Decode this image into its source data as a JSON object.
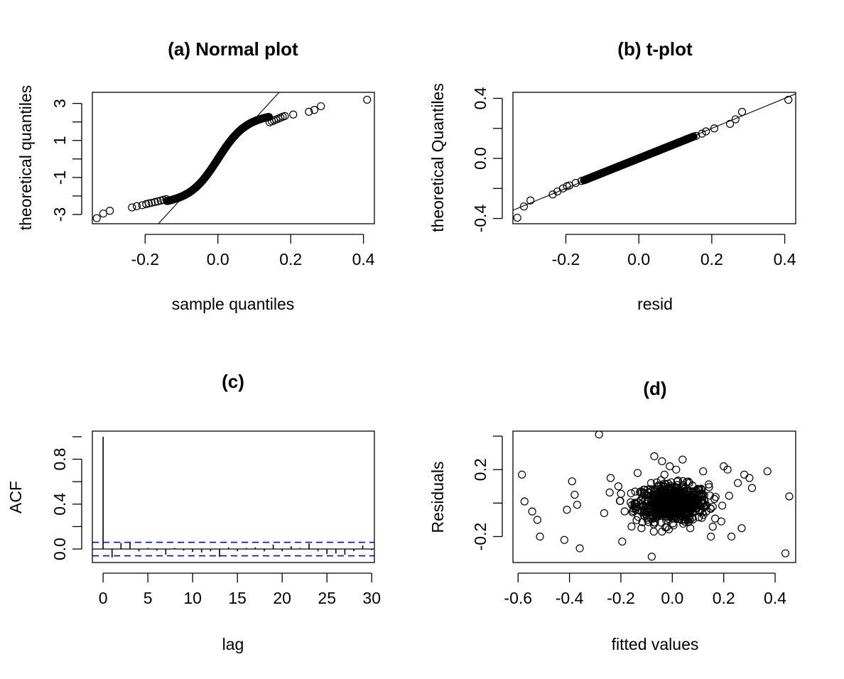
{
  "chart_data": [
    {
      "panel": "a",
      "type": "scatter",
      "title": "(a) Normal plot",
      "xlabel": "sample quantiles",
      "ylabel": "theoretical quantiles",
      "xlim": [
        -0.345,
        0.43
      ],
      "ylim": [
        -3.5,
        3.6
      ],
      "xticks": [
        -0.2,
        0.0,
        0.2,
        0.4
      ],
      "xtick_labels": [
        "-0.2",
        "0.0",
        "0.2",
        "0.4"
      ],
      "yticks": [
        -3,
        -2,
        -1,
        0,
        1,
        2,
        3
      ],
      "ytick_labels": [
        "-3",
        "",
        "-1",
        "",
        "1",
        "",
        "3"
      ],
      "reference_line": {
        "slope": 21.4,
        "intercept": 0.0
      },
      "points_low": [
        [
          -0.333,
          -3.2
        ],
        [
          -0.315,
          -2.95
        ],
        [
          -0.297,
          -2.8
        ],
        [
          -0.236,
          -2.62
        ],
        [
          -0.223,
          -2.55
        ],
        [
          -0.208,
          -2.5
        ],
        [
          -0.197,
          -2.44
        ],
        [
          -0.19,
          -2.4
        ],
        [
          -0.182,
          -2.37
        ],
        [
          -0.173,
          -2.33
        ],
        [
          -0.165,
          -2.29
        ],
        [
          -0.157,
          -2.25
        ],
        [
          -0.15,
          -2.21
        ],
        [
          -0.142,
          -2.17
        ]
      ],
      "points_high": [
        [
          0.142,
          1.98
        ],
        [
          0.148,
          2.03
        ],
        [
          0.154,
          2.08
        ],
        [
          0.16,
          2.13
        ],
        [
          0.166,
          2.18
        ],
        [
          0.172,
          2.23
        ],
        [
          0.178,
          2.28
        ],
        [
          0.184,
          2.32
        ],
        [
          0.207,
          2.4
        ],
        [
          0.25,
          2.55
        ],
        [
          0.265,
          2.65
        ],
        [
          0.283,
          2.85
        ],
        [
          0.41,
          3.2
        ]
      ],
      "points_bulk_range": [
        -0.14,
        0.14
      ],
      "marker": "open-circle"
    },
    {
      "panel": "b",
      "type": "scatter",
      "title": "(b) t-plot",
      "xlabel": "resid",
      "ylabel": "theoretical Quantiles",
      "xlim": [
        -0.345,
        0.43
      ],
      "ylim": [
        -0.435,
        0.44
      ],
      "xticks": [
        -0.2,
        0.0,
        0.2,
        0.4
      ],
      "xtick_labels": [
        "-0.2",
        "0.0",
        "0.2",
        "0.4"
      ],
      "yticks": [
        -0.4,
        -0.2,
        0.0,
        0.2,
        0.4
      ],
      "ytick_labels": [
        "-0.4",
        "",
        "0.0",
        "",
        "0.4"
      ],
      "reference_line": {
        "slope": 1.0,
        "intercept": 0.0
      },
      "points_low": [
        [
          -0.333,
          -0.395
        ],
        [
          -0.315,
          -0.32
        ],
        [
          -0.297,
          -0.28
        ],
        [
          -0.236,
          -0.24
        ],
        [
          -0.223,
          -0.22
        ],
        [
          -0.208,
          -0.2
        ],
        [
          -0.197,
          -0.185
        ],
        [
          -0.19,
          -0.18
        ],
        [
          -0.173,
          -0.163
        ],
        [
          -0.157,
          -0.15
        ]
      ],
      "points_high": [
        [
          0.157,
          0.15
        ],
        [
          0.173,
          0.165
        ],
        [
          0.184,
          0.18
        ],
        [
          0.207,
          0.2
        ],
        [
          0.25,
          0.23
        ],
        [
          0.265,
          0.26
        ],
        [
          0.283,
          0.31
        ],
        [
          0.41,
          0.39
        ]
      ],
      "points_bulk_range": [
        -0.15,
        0.15
      ],
      "marker": "open-circle"
    },
    {
      "panel": "c",
      "type": "bar",
      "title": "(c)",
      "xlabel": "lag",
      "ylabel": "ACF",
      "xlim": [
        -1.2,
        30.3
      ],
      "ylim": [
        -0.12,
        1.05
      ],
      "xticks": [
        0,
        5,
        10,
        15,
        20,
        25,
        30
      ],
      "xtick_labels": [
        "0",
        "5",
        "10",
        "15",
        "20",
        "25",
        "30"
      ],
      "yticks": [
        0.0,
        0.4,
        0.8
      ],
      "ytick_labels": [
        "0.0",
        "0.4",
        "0.8"
      ],
      "y_minor_ticks": [
        0.2,
        0.6,
        1.0
      ],
      "lags": [
        0,
        1,
        2,
        3,
        4,
        5,
        6,
        7,
        8,
        9,
        10,
        11,
        12,
        13,
        14,
        15,
        16,
        17,
        18,
        19,
        20,
        21,
        22,
        23,
        24,
        25,
        26,
        27,
        28,
        29,
        30
      ],
      "values": [
        1.0,
        -0.075,
        0.055,
        0.065,
        -0.02,
        0.01,
        -0.015,
        -0.05,
        0.01,
        -0.015,
        -0.025,
        -0.03,
        -0.02,
        -0.07,
        0.015,
        -0.02,
        0.01,
        0.015,
        -0.02,
        0.04,
        -0.02,
        0.025,
        0.01,
        0.05,
        -0.02,
        -0.045,
        -0.04,
        -0.05,
        -0.02,
        0.03,
        -0.01
      ],
      "conf_band": 0.06,
      "conf_color": "#0000cd"
    },
    {
      "panel": "d",
      "type": "scatter",
      "title": "(d)",
      "xlabel": "fitted values",
      "ylabel": "Residuals",
      "xlim": [
        -0.62,
        0.48
      ],
      "ylim": [
        -0.355,
        0.43
      ],
      "xticks": [
        -0.6,
        -0.4,
        -0.2,
        0.0,
        0.2,
        0.4
      ],
      "xtick_labels": [
        "-0.6",
        "-0.4",
        "-0.2",
        "0.0",
        "0.2",
        "0.4"
      ],
      "yticks": [
        -0.2,
        0.0,
        0.2,
        0.4
      ],
      "ytick_labels": [
        "-0.2",
        "",
        "0.2",
        ""
      ],
      "points_outer": [
        [
          -0.585,
          0.17
        ],
        [
          -0.575,
          0.01
        ],
        [
          -0.545,
          -0.05
        ],
        [
          -0.525,
          -0.1
        ],
        [
          -0.515,
          -0.2
        ],
        [
          -0.42,
          -0.22
        ],
        [
          -0.41,
          -0.04
        ],
        [
          -0.39,
          0.13
        ],
        [
          -0.38,
          0.05
        ],
        [
          -0.37,
          -0.01
        ],
        [
          -0.36,
          -0.27
        ],
        [
          -0.285,
          0.41
        ],
        [
          -0.265,
          -0.06
        ],
        [
          -0.24,
          0.15
        ],
        [
          -0.21,
          0.1
        ],
        [
          -0.195,
          -0.23
        ],
        [
          -0.135,
          0.18
        ],
        [
          -0.12,
          -0.15
        ],
        [
          -0.08,
          -0.32
        ],
        [
          -0.07,
          0.28
        ],
        [
          -0.04,
          0.25
        ],
        [
          -0.01,
          0.22
        ],
        [
          0.015,
          0.2
        ],
        [
          0.04,
          0.26
        ],
        [
          0.07,
          -0.15
        ],
        [
          0.12,
          0.19
        ],
        [
          0.15,
          -0.2
        ],
        [
          0.2,
          0.22
        ],
        [
          0.215,
          0.2
        ],
        [
          0.23,
          -0.2
        ],
        [
          0.255,
          0.12
        ],
        [
          0.27,
          -0.15
        ],
        [
          0.28,
          0.17
        ],
        [
          0.3,
          0.15
        ],
        [
          0.31,
          0.09
        ],
        [
          0.37,
          0.19
        ],
        [
          0.44,
          -0.3
        ],
        [
          0.455,
          0.04
        ]
      ],
      "points_cluster": {
        "center": [
          0.0,
          0.0
        ],
        "sd": [
          0.07,
          0.055
        ],
        "count": 700
      },
      "marker": "open-circle"
    }
  ]
}
